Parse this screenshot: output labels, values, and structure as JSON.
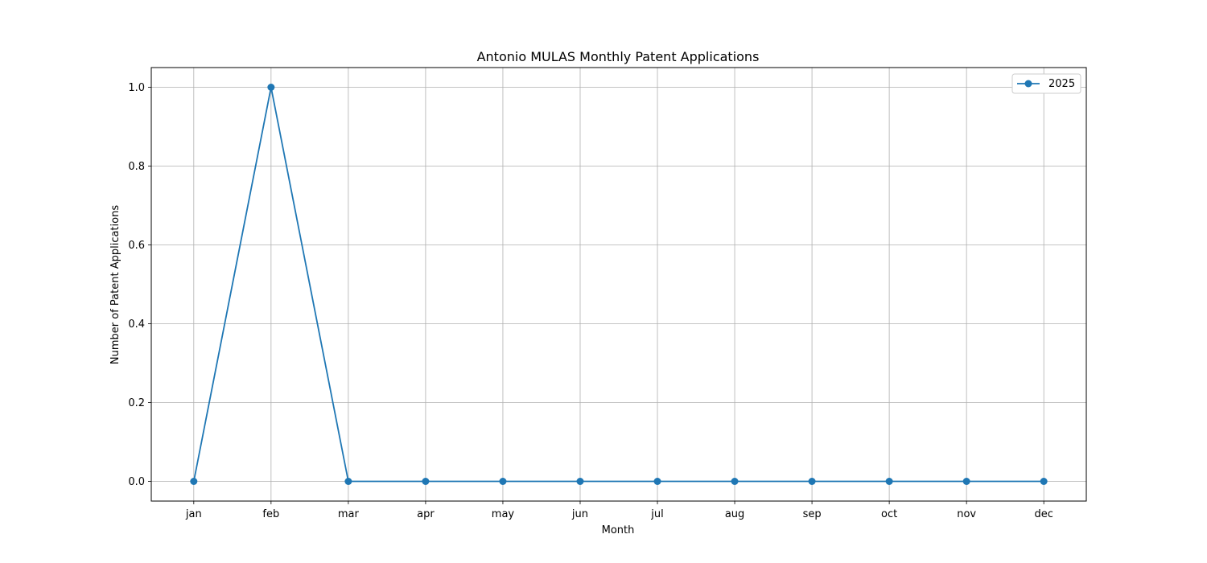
{
  "chart_data": {
    "type": "line",
    "title": "Antonio MULAS Monthly Patent Applications",
    "xlabel": "Month",
    "ylabel": "Number of Patent Applications",
    "categories": [
      "jan",
      "feb",
      "mar",
      "apr",
      "may",
      "jun",
      "jul",
      "aug",
      "sep",
      "oct",
      "nov",
      "dec"
    ],
    "series": [
      {
        "name": "2025",
        "values": [
          0,
          1,
          0,
          0,
          0,
          0,
          0,
          0,
          0,
          0,
          0,
          0
        ],
        "color": "#1f77b4"
      }
    ],
    "ylim": [
      -0.05,
      1.05
    ],
    "yticks": [
      "0.0",
      "0.2",
      "0.4",
      "0.6",
      "0.8",
      "1.0"
    ],
    "grid": true,
    "legend_position": "top-right"
  }
}
